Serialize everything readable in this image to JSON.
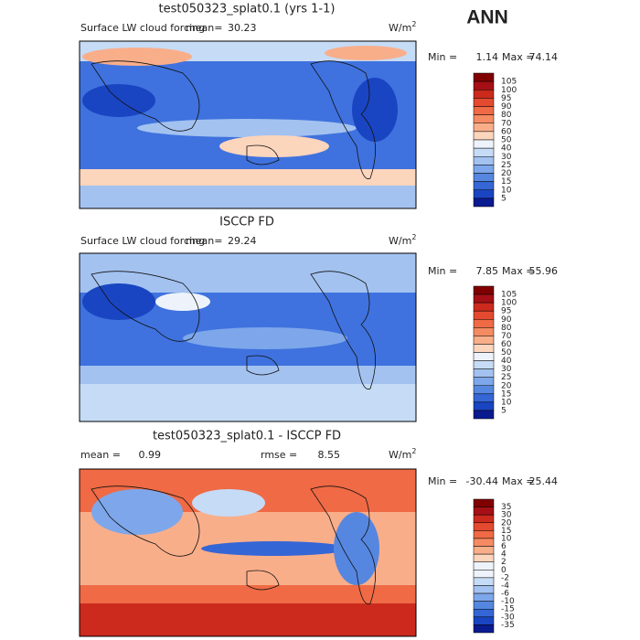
{
  "season": "ANN",
  "colors": [
    "#800000",
    "#a50f15",
    "#cb2a1c",
    "#e34a2f",
    "#ef6a45",
    "#f58b62",
    "#f9ae8a",
    "#fcd5bd",
    "#eef3fb",
    "#c6dbf5",
    "#a3c2f0",
    "#7da7ea",
    "#5687e0",
    "#3466d6",
    "#1a45c2",
    "#0a1a8f"
  ],
  "panels": [
    {
      "title": "test050323_splat0.1 (yrs 1-1)",
      "field": "Surface LW cloud forcing",
      "mean_label": "mean=",
      "mean": 30.23,
      "units": "W/m",
      "units_exp": "2",
      "min_label": "Min =",
      "min": 1.14,
      "max_label": "Max =",
      "max": 74.14,
      "levels": [
        105,
        100,
        95,
        90,
        80,
        70,
        60,
        50,
        40,
        30,
        25,
        20,
        15,
        10,
        5
      ]
    },
    {
      "title": "ISCCP FD",
      "field": "Surface LW cloud forcing",
      "mean_label": "mean=",
      "mean": 29.24,
      "units": "W/m",
      "units_exp": "2",
      "min_label": "Min =",
      "min": 7.85,
      "max_label": "Max =",
      "max": 55.96,
      "levels": [
        105,
        100,
        95,
        90,
        80,
        70,
        60,
        50,
        40,
        30,
        25,
        20,
        15,
        10,
        5
      ]
    },
    {
      "title": "test050323_splat0.1 - ISCCP FD",
      "mean_label": "mean =",
      "mean": 0.99,
      "rmse_label": "rmse =",
      "rmse": 8.55,
      "units": "W/m",
      "units_exp": "2",
      "min_label": "Min =",
      "min": -30.44,
      "max_label": "Max =",
      "max": 25.44,
      "levels": [
        35,
        30,
        20,
        15,
        10,
        6,
        4,
        2,
        0,
        -2,
        -4,
        -6,
        -10,
        -15,
        -30,
        -35
      ]
    }
  ]
}
